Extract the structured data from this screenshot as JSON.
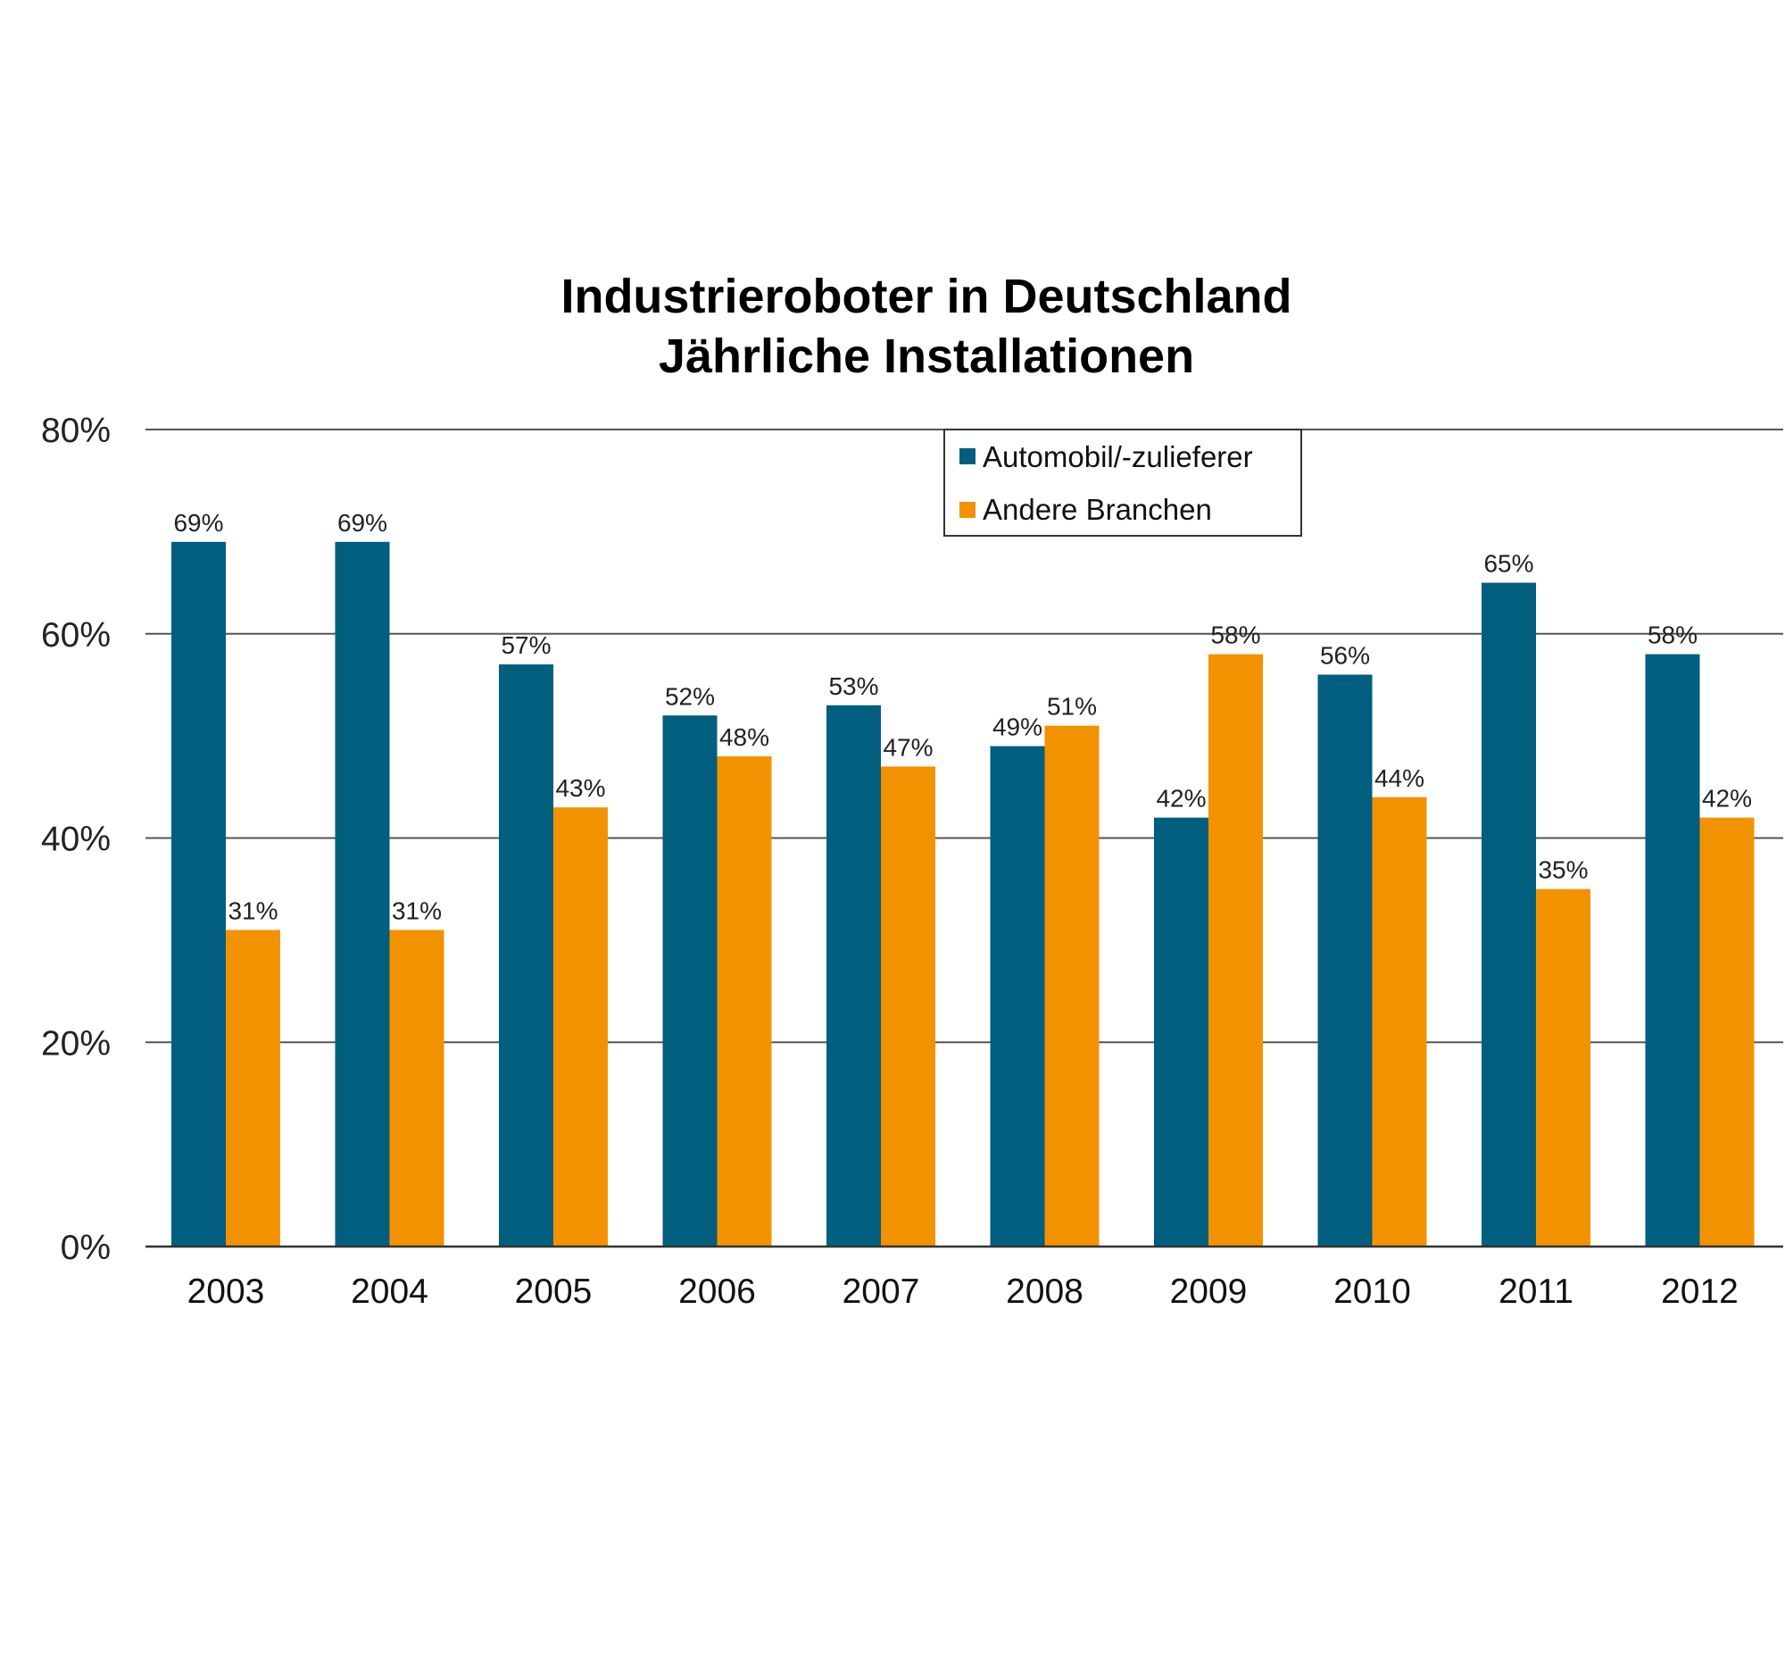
{
  "chart_data": {
    "type": "bar",
    "title": [
      "Industrieroboter in Deutschland",
      "Jährliche Installationen"
    ],
    "xlabel": "",
    "ylabel": "",
    "categories": [
      "2003",
      "2004",
      "2005",
      "2006",
      "2007",
      "2008",
      "2009",
      "2010",
      "2011",
      "2012"
    ],
    "series": [
      {
        "name": "Automobil/-zulieferer",
        "color": "#005E7E",
        "values": [
          69,
          69,
          57,
          52,
          53,
          49,
          42,
          56,
          65,
          58
        ],
        "labels": [
          "69%",
          "69%",
          "57%",
          "52%",
          "53%",
          "49%",
          "42%",
          "56%",
          "65%",
          "58%"
        ]
      },
      {
        "name": "Andere Branchen",
        "color": "#F39200",
        "values": [
          31,
          31,
          43,
          48,
          47,
          51,
          58,
          44,
          35,
          42
        ],
        "labels": [
          "31%",
          "31%",
          "43%",
          "48%",
          "47%",
          "51%",
          "58%",
          "44%",
          "35%",
          "42%"
        ]
      }
    ],
    "ylim": [
      0,
      80
    ],
    "yticks": [
      0,
      20,
      40,
      60,
      80
    ],
    "ytick_labels": [
      "0%",
      "20%",
      "40%",
      "60%",
      "80%"
    ],
    "grid": true,
    "legend_position": "top-center"
  }
}
